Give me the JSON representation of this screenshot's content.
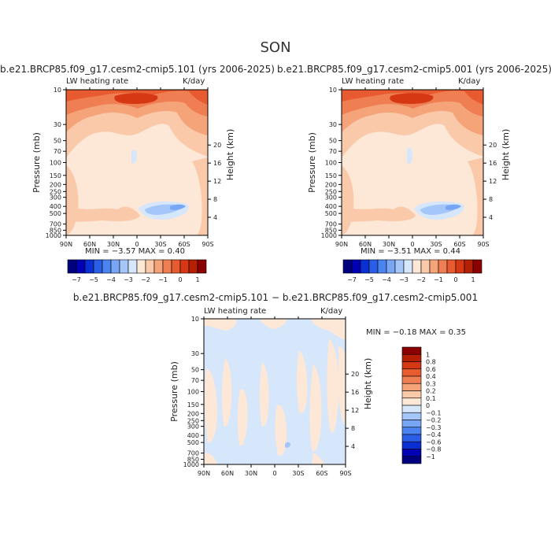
{
  "figure": {
    "title": "SON",
    "panels": [
      {
        "id": "p1",
        "title": "b.e21.BRCP85.f09_g17.cesm2-cmip5.101 (yrs 2006-2025)",
        "field": "LW heating rate",
        "units": "K/day",
        "ylabel": "Pressure (mb)",
        "ylabel_right": "Height (km)",
        "stats": "MIN =  −3.57  MAX =   0.40"
      },
      {
        "id": "p2",
        "title": "b.e21.BRCP85.f09_g17.cesm2-cmip5.001 (yrs 2006-2025)",
        "field": "LW heating rate",
        "units": "K/day",
        "ylabel": "Pressure (mb)",
        "ylabel_right": "Height (km)",
        "stats": "MIN =  −3.51  MAX =   0.44"
      },
      {
        "id": "p3",
        "title": "b.e21.BRCP85.f09_g17.cesm2-cmip5.101 − b.e21.BRCP85.f09_g17.cesm2-cmip5.001",
        "field": "LW heating rate",
        "units": "K/day",
        "ylabel": "Pressure (mb)",
        "ylabel_right": "Height (km)",
        "stats": "MIN =  −0.18  MAX =   0.35"
      }
    ]
  },
  "chart_data": [
    {
      "type": "heatmap",
      "panel": "p1",
      "x_ticks": [
        "90N",
        "60N",
        "30N",
        "0",
        "30S",
        "60S",
        "90S"
      ],
      "y_ticks_left": [
        "10",
        "30",
        "50",
        "70",
        "100",
        "150",
        "200",
        "250",
        "300",
        "400",
        "500",
        "700",
        "850",
        "1000"
      ],
      "y_ticks_right": [
        "20",
        "16",
        "12",
        "8",
        "4"
      ],
      "ylim": [
        1000,
        10
      ],
      "y_scale": "log",
      "min": -3.57,
      "max": 0.4,
      "colorbar_labels": [
        "−7",
        "−5",
        "−4",
        "−3",
        "−2",
        "−1",
        "0",
        "1"
      ],
      "colorbar_colors": [
        "#00007f",
        "#0000b4",
        "#0a2fd2",
        "#2a5ee6",
        "#4b84f0",
        "#78a6f5",
        "#a5c6f8",
        "#d6e6fb",
        "#fde7d7",
        "#f9c9a9",
        "#f5a47a",
        "#ef7f53",
        "#e85a30",
        "#d63814",
        "#b51f06",
        "#8b0000"
      ]
    },
    {
      "type": "heatmap",
      "panel": "p2",
      "x_ticks": [
        "90N",
        "60N",
        "30N",
        "0",
        "30S",
        "60S",
        "90S"
      ],
      "y_ticks_left": [
        "10",
        "30",
        "50",
        "70",
        "100",
        "150",
        "200",
        "250",
        "300",
        "400",
        "500",
        "700",
        "850",
        "1000"
      ],
      "y_ticks_right": [
        "20",
        "16",
        "12",
        "8",
        "4"
      ],
      "ylim": [
        1000,
        10
      ],
      "y_scale": "log",
      "min": -3.51,
      "max": 0.44,
      "colorbar_labels": [
        "−7",
        "−5",
        "−4",
        "−3",
        "−2",
        "−1",
        "0",
        "1"
      ],
      "colorbar_colors": [
        "#00007f",
        "#0000b4",
        "#0a2fd2",
        "#2a5ee6",
        "#4b84f0",
        "#78a6f5",
        "#a5c6f8",
        "#d6e6fb",
        "#fde7d7",
        "#f9c9a9",
        "#f5a47a",
        "#ef7f53",
        "#e85a30",
        "#d63814",
        "#b51f06",
        "#8b0000"
      ]
    },
    {
      "type": "heatmap",
      "panel": "p3",
      "x_ticks": [
        "90N",
        "60N",
        "30N",
        "0",
        "30S",
        "60S",
        "90S"
      ],
      "y_ticks_left": [
        "10",
        "30",
        "50",
        "70",
        "100",
        "150",
        "200",
        "250",
        "300",
        "400",
        "500",
        "700",
        "850",
        "1000"
      ],
      "y_ticks_right": [
        "20",
        "16",
        "12",
        "8",
        "4"
      ],
      "ylim": [
        1000,
        10
      ],
      "y_scale": "log",
      "min": -0.18,
      "max": 0.35,
      "colorbar_labels": [
        "1",
        "0.8",
        "0.6",
        "0.4",
        "0.3",
        "0.2",
        "0.1",
        "0",
        "−0.1",
        "−0.2",
        "−0.3",
        "−0.4",
        "−0.6",
        "−0.8",
        "−1"
      ],
      "colorbar_colors": [
        "#8b0000",
        "#b51f06",
        "#d63814",
        "#e85a30",
        "#ef7f53",
        "#f5a47a",
        "#f9c9a9",
        "#fde7d7",
        "#d6e6fb",
        "#a5c6f8",
        "#78a6f5",
        "#4b84f0",
        "#2a5ee6",
        "#0a2fd2",
        "#0000b4",
        "#00007f"
      ]
    }
  ]
}
